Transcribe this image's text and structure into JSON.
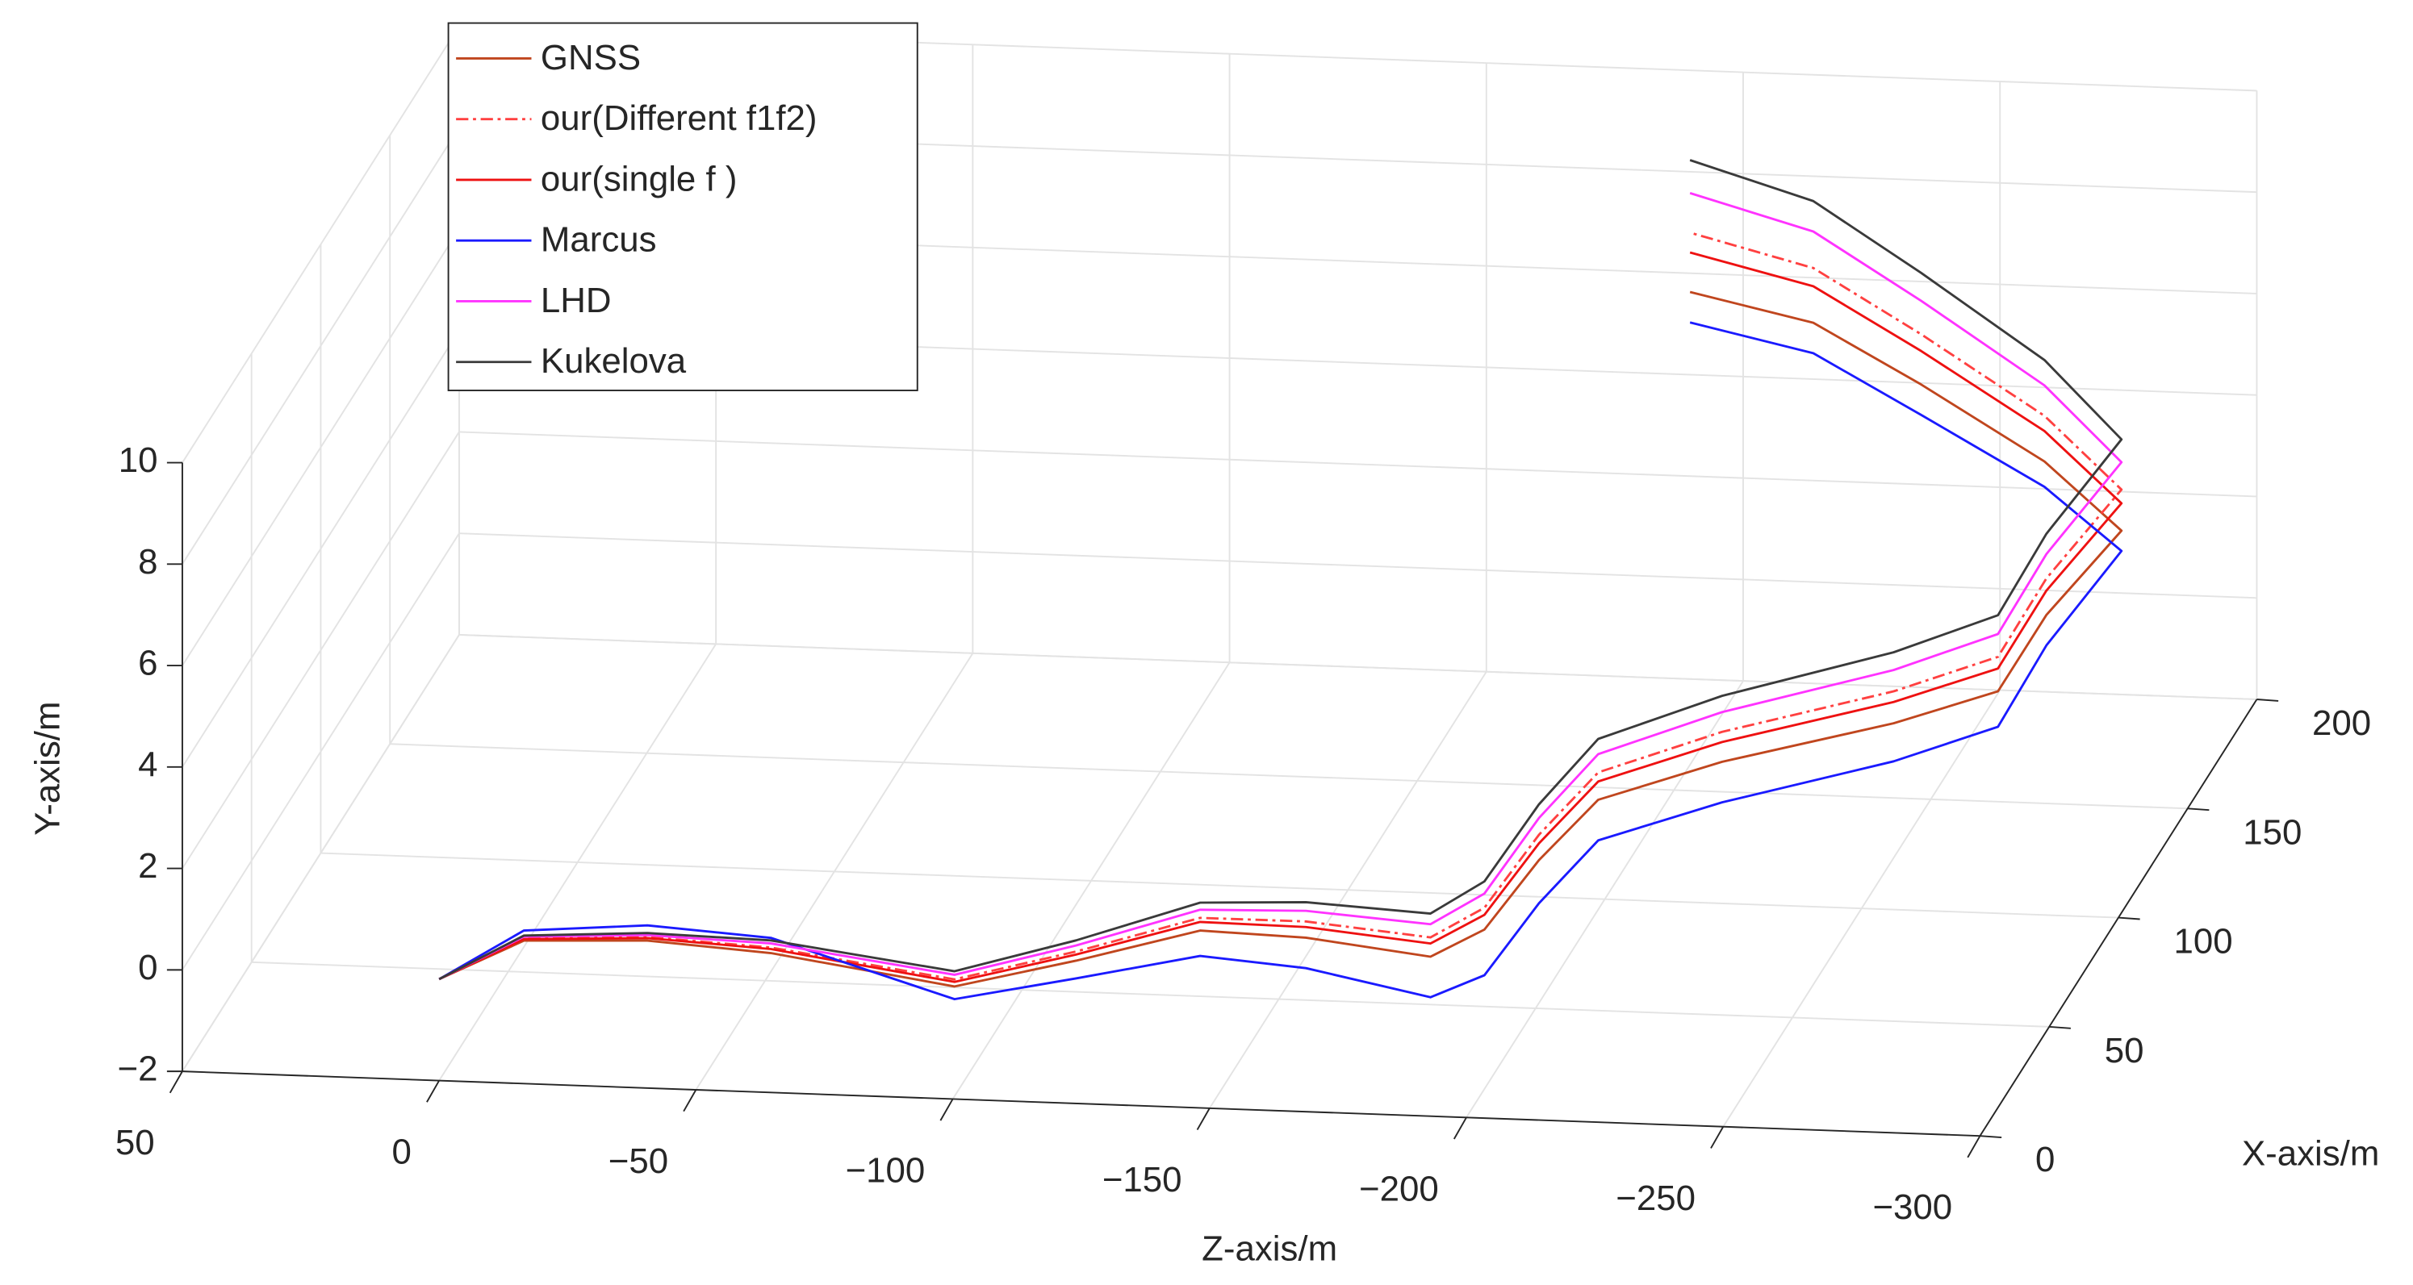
{
  "chart_data": {
    "type": "line3d",
    "xlabel": "X-axis/m",
    "ylabel": "Y-axis/m",
    "zlabel": "Z-axis/m",
    "xlim": [
      0,
      200
    ],
    "ylim": [
      -2,
      10
    ],
    "zlim": [
      50,
      -300
    ],
    "xticks": [
      0,
      50,
      100,
      150,
      200
    ],
    "yticks": [
      {
        "value": -2,
        "label": "−2"
      },
      0,
      2,
      4,
      6,
      8,
      10
    ],
    "zticks": [
      50,
      0,
      {
        "value": -50,
        "label": "−50"
      },
      {
        "value": -100,
        "label": "−100"
      },
      {
        "value": -150,
        "label": "−150"
      },
      {
        "value": -200,
        "label": "−200"
      },
      {
        "value": -250,
        "label": "−250"
      },
      {
        "value": -300,
        "label": "−300"
      }
    ],
    "grid": true,
    "legend": "upper left",
    "x": [
      0,
      18.6,
      20.6,
      17,
      5,
      18.5,
      34,
      32.5,
      26,
      39,
      71,
      99,
      118,
      138,
      154,
      189,
      195,
      195,
      195,
      195,
      195
    ],
    "z": [
      0,
      -11.5,
      -35,
      -60,
      -99,
      -119,
      -139,
      -160,
      -186,
      -193,
      -195,
      -199,
      -218,
      -246,
      -262,
      -262,
      -275,
      -260,
      -236,
      -215,
      -191
    ],
    "series": [
      {
        "name": "GNSS",
        "color": "#c0461e",
        "linestyle": "-",
        "values": [
          0,
          0,
          0,
          0,
          0,
          0,
          0,
          0,
          0,
          0,
          0,
          0,
          0,
          0,
          0,
          0,
          1.45,
          2.76,
          4.19,
          5.33,
          5.85
        ]
      },
      {
        "name": "our(Different f1f2)",
        "color": "#ff4040",
        "linestyle": "-.",
        "values": [
          0,
          0.05,
          0.07,
          0.11,
          0.14,
          0.18,
          0.25,
          0.32,
          0.38,
          0.43,
          0.5,
          0.54,
          0.59,
          0.63,
          0.68,
          0.72,
          2.26,
          3.66,
          5.18,
          6.41,
          7.02
        ]
      },
      {
        "name": "our(single f )",
        "color": "#ee1111",
        "linestyle": "-",
        "values": [
          0,
          0.03,
          0.05,
          0.08,
          0.09,
          0.12,
          0.17,
          0.21,
          0.26,
          0.29,
          0.33,
          0.36,
          0.39,
          0.42,
          0.45,
          0.48,
          1.99,
          3.36,
          4.85,
          6.05,
          6.63
        ]
      },
      {
        "name": "Marcus",
        "color": "#1a1aff",
        "linestyle": "-",
        "values": [
          0,
          0.2,
          0.3,
          0.3,
          -0.25,
          -0.35,
          -0.5,
          -0.6,
          -0.8,
          -0.9,
          -0.85,
          -0.8,
          -0.8,
          -0.75,
          -0.7,
          -0.6,
          1.05,
          2.26,
          3.59,
          4.73,
          5.25
        ]
      },
      {
        "name": "LHD",
        "color": "#ff33ff",
        "linestyle": "-",
        "values": [
          0,
          0.08,
          0.11,
          0.19,
          0.23,
          0.3,
          0.41,
          0.53,
          0.64,
          0.71,
          0.83,
          0.9,
          0.98,
          1.05,
          1.13,
          1.2,
          2.8,
          4.26,
          5.84,
          7.13,
          7.8
        ]
      },
      {
        "name": "Kukelova",
        "color": "#3a3a3a",
        "linestyle": "-",
        "values": [
          0,
          0.1,
          0.15,
          0.25,
          0.3,
          0.4,
          0.55,
          0.7,
          0.85,
          0.95,
          1.1,
          1.2,
          1.3,
          1.4,
          1.5,
          1.6,
          3.25,
          4.76,
          6.39,
          7.73,
          8.45
        ]
      }
    ]
  }
}
